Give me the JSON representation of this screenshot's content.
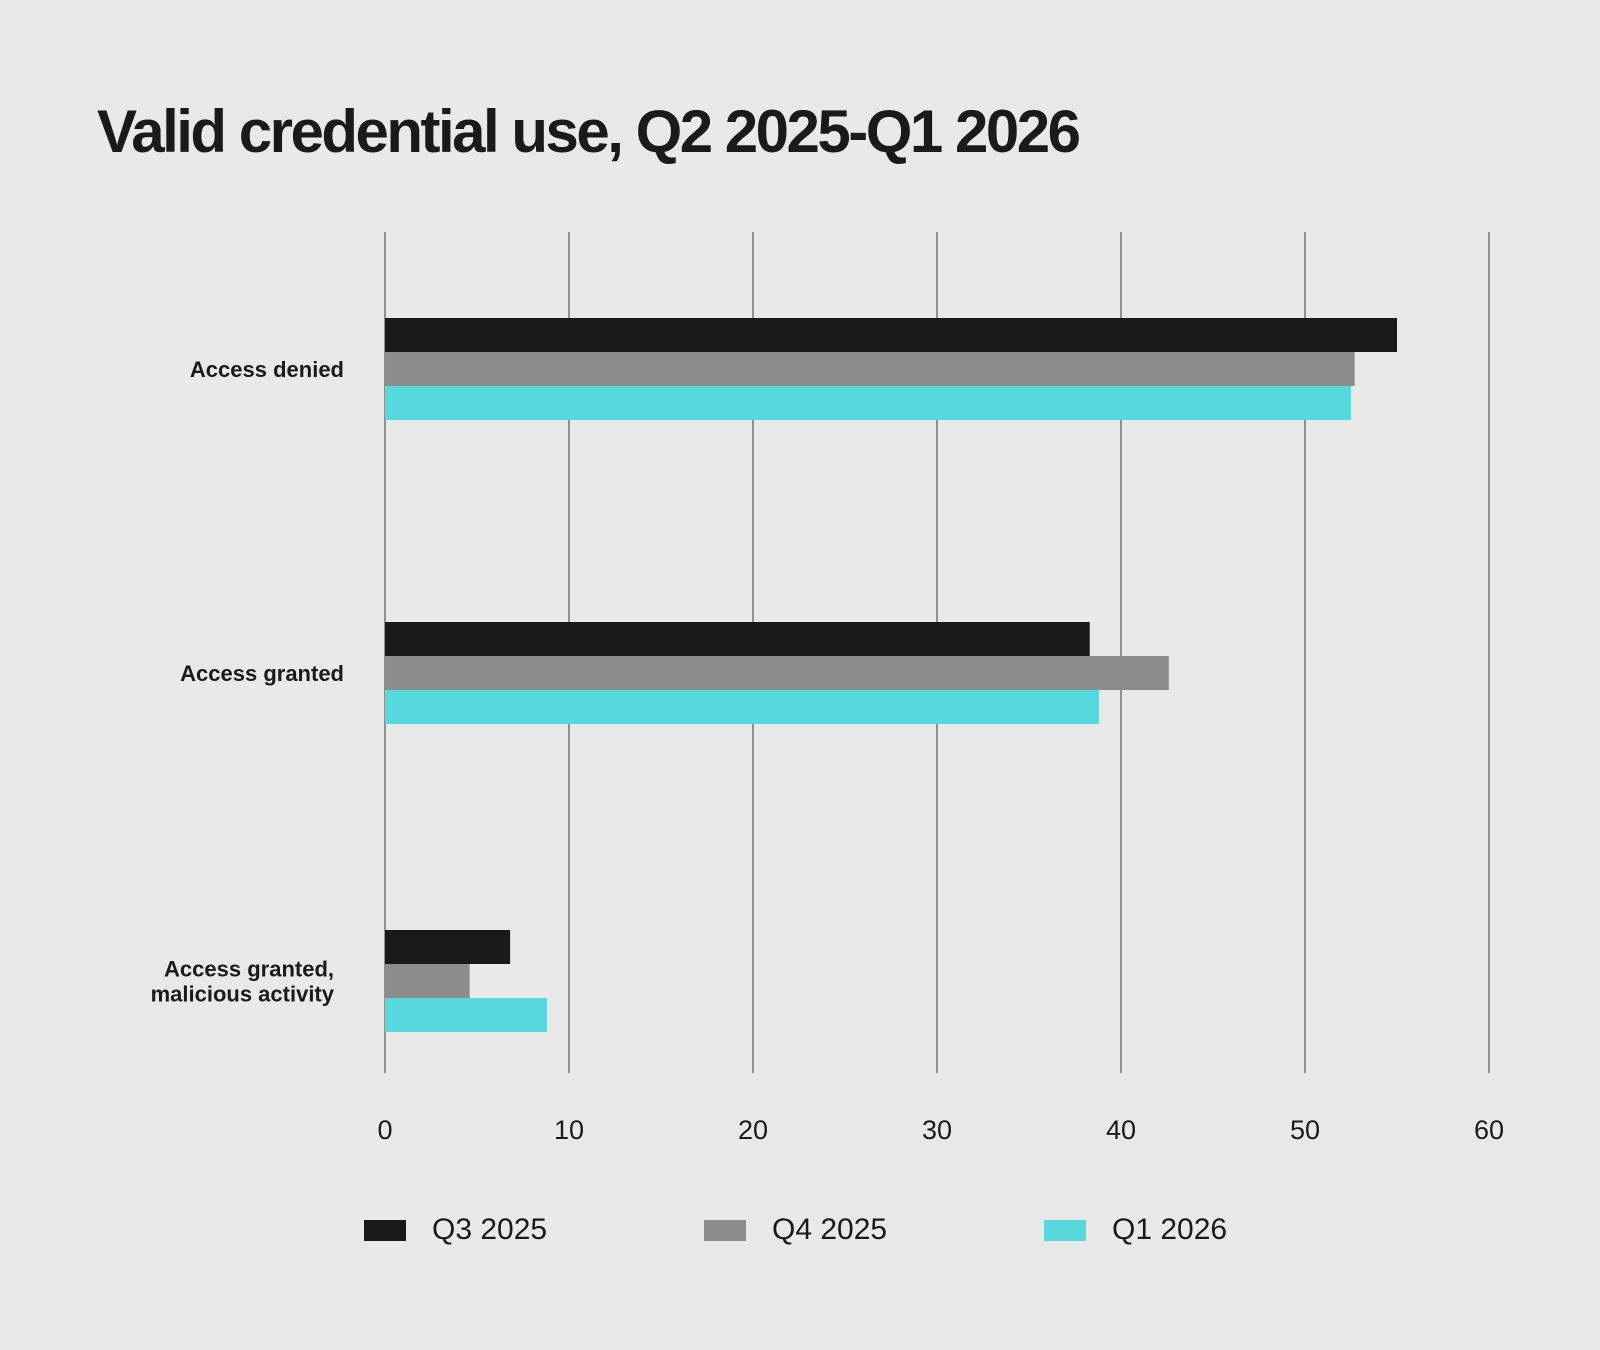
{
  "chart_data": {
    "type": "bar",
    "orientation": "horizontal",
    "title": "Valid credential use, Q2 2025-Q1 2026",
    "categories": [
      [
        "Access denied"
      ],
      [
        "Access granted"
      ],
      [
        "Access granted,",
        "malicious activity"
      ]
    ],
    "series": [
      {
        "name": "Q3 2025",
        "color": "#1a1a1a",
        "values": [
          55,
          38.3,
          6.8
        ]
      },
      {
        "name": "Q4 2025",
        "color": "#8c8c8c",
        "values": [
          52.7,
          42.6,
          4.6
        ]
      },
      {
        "name": "Q1 2026",
        "color": "#56d8de",
        "values": [
          52.5,
          38.8,
          8.8
        ]
      }
    ],
    "xlim": [
      0,
      60
    ],
    "xticks": [
      0,
      10,
      20,
      30,
      40,
      50,
      60
    ],
    "xlabel": "",
    "ylabel": "",
    "grid": "vertical",
    "legend_position": "bottom"
  }
}
